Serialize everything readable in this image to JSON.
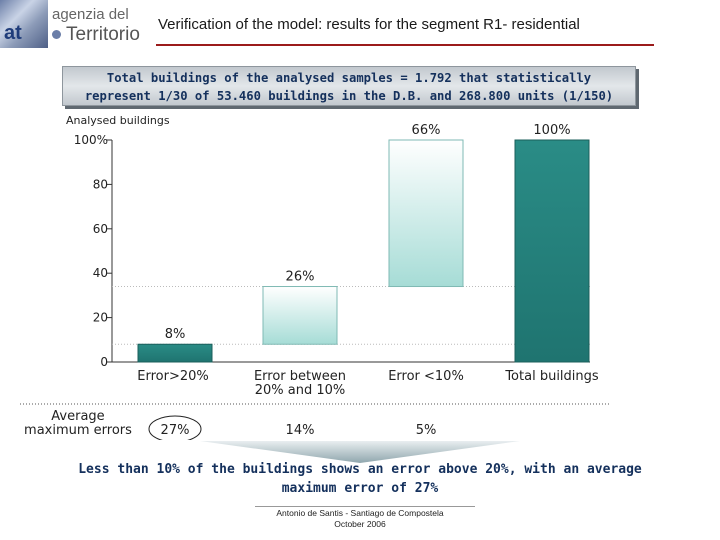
{
  "header": {
    "logo_line1": "agenzia del",
    "logo_line2": "Territorio",
    "logo_mark": "at",
    "title": "Verification of the model: results for the segment R1- residential"
  },
  "banner": {
    "line1": "Total buildings of the analysed samples = 1.792 that statistically",
    "line2": "represent 1/30 of 53.460 buildings in the D.B. and 268.800 units (1/150)"
  },
  "chart_data": {
    "type": "bar",
    "subtype": "waterfall",
    "title": "",
    "ylabel": "Analysed buildings",
    "ylim": [
      0,
      100
    ],
    "yticks": [
      "100%",
      "80",
      "60",
      "40",
      "20",
      "0"
    ],
    "yticks_values": [
      100,
      80,
      60,
      40,
      20,
      0
    ],
    "categories": [
      "Error>20%",
      "Error between 20% and 10%",
      "Error <10%",
      "Total buildings"
    ],
    "category_lines": [
      [
        "Error>20%"
      ],
      [
        "Error between",
        "20% and 10%"
      ],
      [
        "Error <10%"
      ],
      [
        "Total buildings"
      ]
    ],
    "values": [
      8,
      26,
      66,
      100
    ],
    "bar_ranges": [
      [
        0,
        8
      ],
      [
        8,
        34
      ],
      [
        34,
        100
      ],
      [
        0,
        100
      ]
    ],
    "data_labels": [
      "8%",
      "26%",
      "66%",
      "100%"
    ],
    "colors": [
      "#2e8f89",
      "#bfe6e2",
      "#bfe6e2",
      "#2e8f89"
    ],
    "row_label": [
      "Average",
      "maximum errors"
    ],
    "avg_max_errors": [
      "27%",
      "14%",
      "5%"
    ]
  },
  "conclusion": {
    "line1": "Less than 10% of the buildings shows an error above 20%, with an average",
    "line2": "maximum error of 27%"
  },
  "footer": {
    "line1": "Antonio de Santis - Santiago de Compostela",
    "line2": "October 2006"
  }
}
